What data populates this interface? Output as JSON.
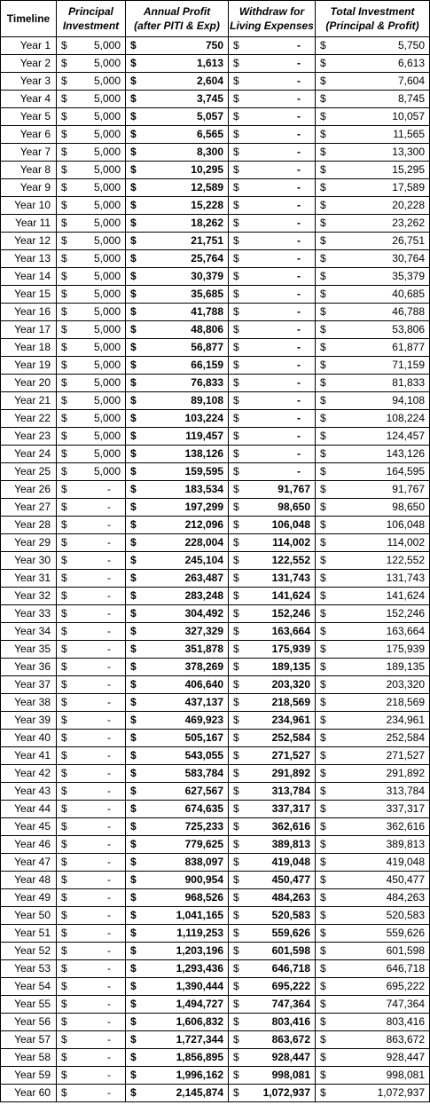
{
  "headers": {
    "timeline": "Timeline",
    "principal": [
      "Principal",
      "Investment"
    ],
    "profit": [
      "Annual Profit",
      "(after PITI & Exp)"
    ],
    "withdraw": [
      "Withdraw for",
      "Living Expenses"
    ],
    "total": [
      "Total Investment",
      "(Principal & Profit)"
    ]
  },
  "currency_symbol": "$",
  "rows": [
    [
      "Year 1",
      "5,000",
      "750",
      "-",
      "5,750"
    ],
    [
      "Year 2",
      "5,000",
      "1,613",
      "-",
      "6,613"
    ],
    [
      "Year 3",
      "5,000",
      "2,604",
      "-",
      "7,604"
    ],
    [
      "Year 4",
      "5,000",
      "3,745",
      "-",
      "8,745"
    ],
    [
      "Year 5",
      "5,000",
      "5,057",
      "-",
      "10,057"
    ],
    [
      "Year 6",
      "5,000",
      "6,565",
      "-",
      "11,565"
    ],
    [
      "Year 7",
      "5,000",
      "8,300",
      "-",
      "13,300"
    ],
    [
      "Year 8",
      "5,000",
      "10,295",
      "-",
      "15,295"
    ],
    [
      "Year 9",
      "5,000",
      "12,589",
      "-",
      "17,589"
    ],
    [
      "Year 10",
      "5,000",
      "15,228",
      "-",
      "20,228"
    ],
    [
      "Year 11",
      "5,000",
      "18,262",
      "-",
      "23,262"
    ],
    [
      "Year 12",
      "5,000",
      "21,751",
      "-",
      "26,751"
    ],
    [
      "Year 13",
      "5,000",
      "25,764",
      "-",
      "30,764"
    ],
    [
      "Year 14",
      "5,000",
      "30,379",
      "-",
      "35,379"
    ],
    [
      "Year 15",
      "5,000",
      "35,685",
      "-",
      "40,685"
    ],
    [
      "Year 16",
      "5,000",
      "41,788",
      "-",
      "46,788"
    ],
    [
      "Year 17",
      "5,000",
      "48,806",
      "-",
      "53,806"
    ],
    [
      "Year 18",
      "5,000",
      "56,877",
      "-",
      "61,877"
    ],
    [
      "Year 19",
      "5,000",
      "66,159",
      "-",
      "71,159"
    ],
    [
      "Year 20",
      "5,000",
      "76,833",
      "-",
      "81,833"
    ],
    [
      "Year 21",
      "5,000",
      "89,108",
      "-",
      "94,108"
    ],
    [
      "Year 22",
      "5,000",
      "103,224",
      "-",
      "108,224"
    ],
    [
      "Year 23",
      "5,000",
      "119,457",
      "-",
      "124,457"
    ],
    [
      "Year 24",
      "5,000",
      "138,126",
      "-",
      "143,126"
    ],
    [
      "Year 25",
      "5,000",
      "159,595",
      "-",
      "164,595"
    ],
    [
      "Year 26",
      "-",
      "183,534",
      "91,767",
      "91,767"
    ],
    [
      "Year 27",
      "-",
      "197,299",
      "98,650",
      "98,650"
    ],
    [
      "Year 28",
      "-",
      "212,096",
      "106,048",
      "106,048"
    ],
    [
      "Year 29",
      "-",
      "228,004",
      "114,002",
      "114,002"
    ],
    [
      "Year 30",
      "-",
      "245,104",
      "122,552",
      "122,552"
    ],
    [
      "Year 31",
      "-",
      "263,487",
      "131,743",
      "131,743"
    ],
    [
      "Year 32",
      "-",
      "283,248",
      "141,624",
      "141,624"
    ],
    [
      "Year 33",
      "-",
      "304,492",
      "152,246",
      "152,246"
    ],
    [
      "Year 34",
      "-",
      "327,329",
      "163,664",
      "163,664"
    ],
    [
      "Year 35",
      "-",
      "351,878",
      "175,939",
      "175,939"
    ],
    [
      "Year 36",
      "-",
      "378,269",
      "189,135",
      "189,135"
    ],
    [
      "Year 37",
      "-",
      "406,640",
      "203,320",
      "203,320"
    ],
    [
      "Year 38",
      "-",
      "437,137",
      "218,569",
      "218,569"
    ],
    [
      "Year 39",
      "-",
      "469,923",
      "234,961",
      "234,961"
    ],
    [
      "Year 40",
      "-",
      "505,167",
      "252,584",
      "252,584"
    ],
    [
      "Year 41",
      "-",
      "543,055",
      "271,527",
      "271,527"
    ],
    [
      "Year 42",
      "-",
      "583,784",
      "291,892",
      "291,892"
    ],
    [
      "Year 43",
      "-",
      "627,567",
      "313,784",
      "313,784"
    ],
    [
      "Year 44",
      "-",
      "674,635",
      "337,317",
      "337,317"
    ],
    [
      "Year 45",
      "-",
      "725,233",
      "362,616",
      "362,616"
    ],
    [
      "Year 46",
      "-",
      "779,625",
      "389,813",
      "389,813"
    ],
    [
      "Year 47",
      "-",
      "838,097",
      "419,048",
      "419,048"
    ],
    [
      "Year 48",
      "-",
      "900,954",
      "450,477",
      "450,477"
    ],
    [
      "Year 49",
      "-",
      "968,526",
      "484,263",
      "484,263"
    ],
    [
      "Year 50",
      "-",
      "1,041,165",
      "520,583",
      "520,583"
    ],
    [
      "Year 51",
      "-",
      "1,119,253",
      "559,626",
      "559,626"
    ],
    [
      "Year 52",
      "-",
      "1,203,196",
      "601,598",
      "601,598"
    ],
    [
      "Year 53",
      "-",
      "1,293,436",
      "646,718",
      "646,718"
    ],
    [
      "Year 54",
      "-",
      "1,390,444",
      "695,222",
      "695,222"
    ],
    [
      "Year 55",
      "-",
      "1,494,727",
      "747,364",
      "747,364"
    ],
    [
      "Year 56",
      "-",
      "1,606,832",
      "803,416",
      "803,416"
    ],
    [
      "Year 57",
      "-",
      "1,727,344",
      "863,672",
      "863,672"
    ],
    [
      "Year 58",
      "-",
      "1,856,895",
      "928,447",
      "928,447"
    ],
    [
      "Year 59",
      "-",
      "1,996,162",
      "998,081",
      "998,081"
    ],
    [
      "Year 60",
      "-",
      "2,145,874",
      "1,072,937",
      "1,072,937"
    ]
  ]
}
